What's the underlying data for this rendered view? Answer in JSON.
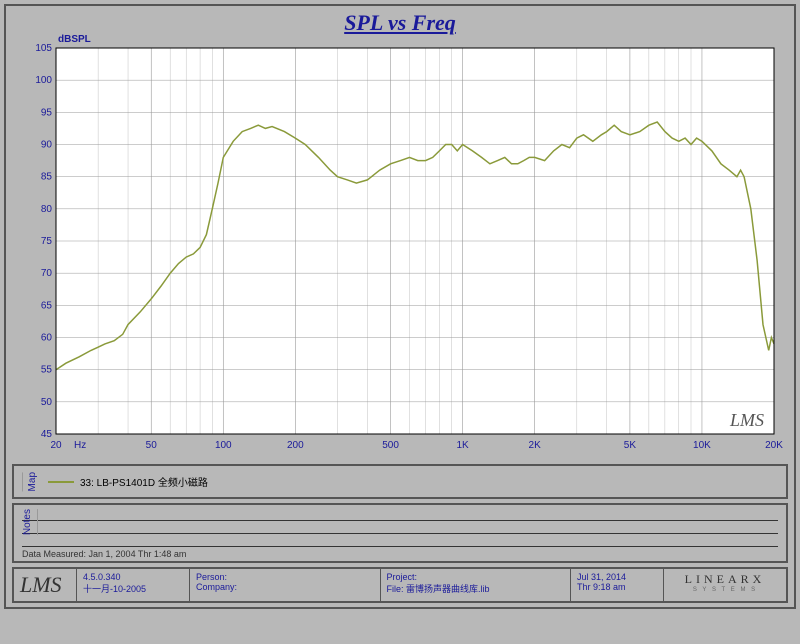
{
  "chart": {
    "type": "line",
    "title": "SPL vs Freq",
    "ylabel": "dBSPL",
    "xlabel": "Hz",
    "ylim": [
      45,
      105
    ],
    "ytick_step": 5,
    "xlim": [
      20,
      20000
    ],
    "xscale": "log",
    "x_ticks": [
      {
        "v": 20,
        "l": "20"
      },
      {
        "v": 50,
        "l": "50"
      },
      {
        "v": 100,
        "l": "100"
      },
      {
        "v": 200,
        "l": "200"
      },
      {
        "v": 500,
        "l": "500"
      },
      {
        "v": 1000,
        "l": "1K"
      },
      {
        "v": 2000,
        "l": "2K"
      },
      {
        "v": 5000,
        "l": "5K"
      },
      {
        "v": 10000,
        "l": "10K"
      },
      {
        "v": 20000,
        "l": "20K"
      }
    ],
    "x_minor": [
      30,
      40,
      60,
      70,
      80,
      90,
      300,
      400,
      600,
      700,
      800,
      900,
      3000,
      4000,
      6000,
      7000,
      8000,
      9000
    ],
    "plot_bg": "#ffffff",
    "grid_color": "#999999",
    "axis_color": "#000000",
    "line_color": "#8a9a3a",
    "line_width": 1.5,
    "tick_label_color": "#1a1a9a",
    "tick_fontsize": 10,
    "title_color": "#1a1a9a",
    "title_fontsize": 22,
    "watermark": "LMS",
    "data": [
      [
        20,
        55
      ],
      [
        22,
        56
      ],
      [
        25,
        57
      ],
      [
        28,
        58
      ],
      [
        30,
        58.5
      ],
      [
        32,
        59
      ],
      [
        35,
        59.5
      ],
      [
        38,
        60.5
      ],
      [
        40,
        62
      ],
      [
        45,
        64
      ],
      [
        50,
        66
      ],
      [
        55,
        68
      ],
      [
        60,
        70
      ],
      [
        65,
        71.5
      ],
      [
        70,
        72.5
      ],
      [
        75,
        73
      ],
      [
        80,
        74
      ],
      [
        85,
        76
      ],
      [
        90,
        80
      ],
      [
        95,
        84
      ],
      [
        100,
        88
      ],
      [
        110,
        90.5
      ],
      [
        120,
        92
      ],
      [
        130,
        92.5
      ],
      [
        140,
        93
      ],
      [
        150,
        92.5
      ],
      [
        160,
        92.8
      ],
      [
        180,
        92
      ],
      [
        200,
        91
      ],
      [
        220,
        90
      ],
      [
        250,
        88
      ],
      [
        280,
        86
      ],
      [
        300,
        85
      ],
      [
        330,
        84.5
      ],
      [
        360,
        84
      ],
      [
        400,
        84.5
      ],
      [
        450,
        86
      ],
      [
        500,
        87
      ],
      [
        550,
        87.5
      ],
      [
        600,
        88
      ],
      [
        650,
        87.5
      ],
      [
        700,
        87.5
      ],
      [
        750,
        88
      ],
      [
        800,
        89
      ],
      [
        850,
        90
      ],
      [
        900,
        90
      ],
      [
        950,
        89
      ],
      [
        1000,
        90
      ],
      [
        1100,
        89
      ],
      [
        1200,
        88
      ],
      [
        1300,
        87
      ],
      [
        1400,
        87.5
      ],
      [
        1500,
        88
      ],
      [
        1600,
        87
      ],
      [
        1700,
        87
      ],
      [
        1800,
        87.5
      ],
      [
        1900,
        88
      ],
      [
        2000,
        88
      ],
      [
        2200,
        87.5
      ],
      [
        2400,
        89
      ],
      [
        2600,
        90
      ],
      [
        2800,
        89.5
      ],
      [
        3000,
        91
      ],
      [
        3200,
        91.5
      ],
      [
        3500,
        90.5
      ],
      [
        3800,
        91.5
      ],
      [
        4000,
        92
      ],
      [
        4300,
        93
      ],
      [
        4600,
        92
      ],
      [
        5000,
        91.5
      ],
      [
        5500,
        92
      ],
      [
        6000,
        93
      ],
      [
        6500,
        93.5
      ],
      [
        7000,
        92
      ],
      [
        7500,
        91
      ],
      [
        8000,
        90.5
      ],
      [
        8500,
        91
      ],
      [
        9000,
        90
      ],
      [
        9500,
        91
      ],
      [
        10000,
        90.5
      ],
      [
        11000,
        89
      ],
      [
        12000,
        87
      ],
      [
        13000,
        86
      ],
      [
        14000,
        85
      ],
      [
        14500,
        86
      ],
      [
        15000,
        85
      ],
      [
        16000,
        80
      ],
      [
        17000,
        72
      ],
      [
        18000,
        62
      ],
      [
        19000,
        58
      ],
      [
        19500,
        60
      ],
      [
        20000,
        59
      ]
    ]
  },
  "legend": {
    "side_label": "Map",
    "swatch_color": "#8a9a3a",
    "text": "33: LB-PS1401D 全频小磁路"
  },
  "notes": {
    "side_label": "Notes",
    "measured": "Data Measured: Jan 1, 2004 Thr 1:48 am"
  },
  "footer": {
    "logo": "LMS",
    "version": "4.5.0.340",
    "version_date": "十一月-10-2005",
    "person_label": "Person:",
    "company_label": "Company:",
    "project_label": "Project:",
    "file_label": "File: 雷博扬声器曲线库.lib",
    "date": "Jul 31, 2014",
    "time": "Thr 9:18 am",
    "brand": "LINEARX",
    "brand_sub": "S Y S T E M S"
  }
}
